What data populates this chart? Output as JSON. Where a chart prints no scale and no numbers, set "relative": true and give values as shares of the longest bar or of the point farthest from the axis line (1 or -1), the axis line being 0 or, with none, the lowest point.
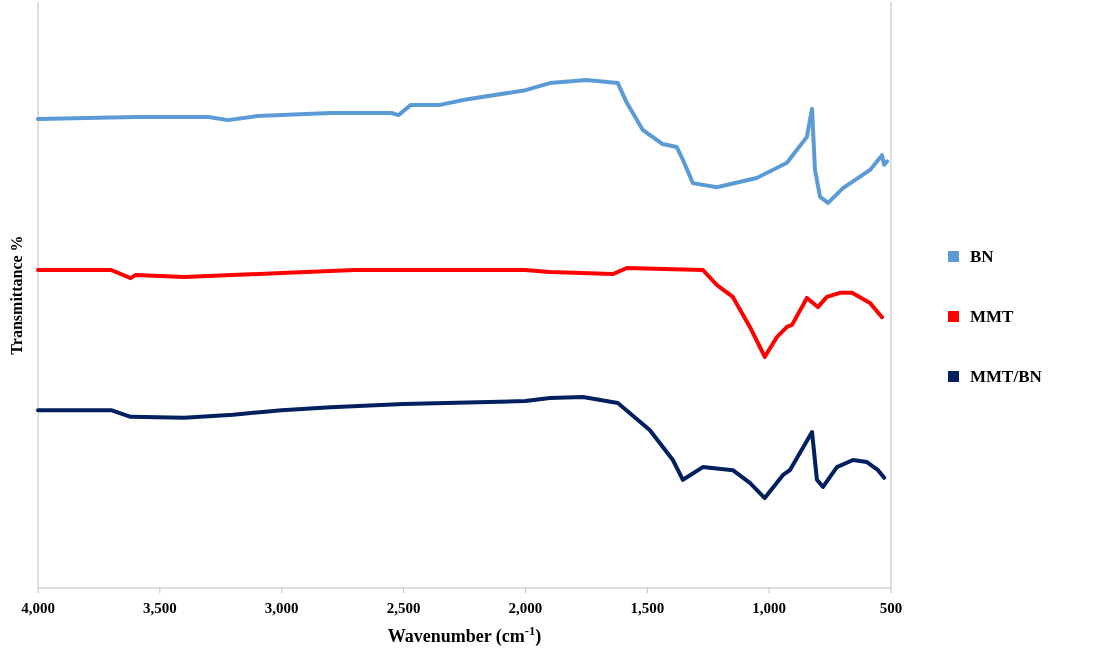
{
  "chart_data": {
    "type": "line",
    "xlabel": "Wavenumber (cm$^{-1}$)",
    "ylabel": "Transmittance %",
    "relative": true,
    "xlim": [
      4000,
      500
    ],
    "xticks": [
      {
        "value": 4000,
        "label": "4,000"
      },
      {
        "value": 3500,
        "label": "3,500"
      },
      {
        "value": 3000,
        "label": "3,000"
      },
      {
        "value": 2500,
        "label": "2,500"
      },
      {
        "value": 2000,
        "label": "2,000"
      },
      {
        "value": 1500,
        "label": "1,500"
      },
      {
        "value": 1000,
        "label": "1,000"
      },
      {
        "value": 500,
        "label": "500"
      }
    ],
    "grid": false,
    "legend": "right",
    "line_style": "solid",
    "series": [
      {
        "name": "BN",
        "color": "#5b9bd5",
        "x": [
          4000,
          3600,
          3300,
          3220,
          3100,
          2800,
          2550,
          2520,
          2470,
          2350,
          2250,
          2000,
          1900,
          1750,
          1621,
          1584,
          1519,
          1437,
          1379,
          1354,
          1313,
          1215,
          1051,
          927,
          845,
          824,
          812,
          791,
          758,
          697,
          586,
          537,
          528,
          516
        ],
        "values": [
          0.923,
          0.927,
          0.927,
          0.921,
          0.929,
          0.935,
          0.935,
          0.931,
          0.951,
          0.951,
          0.961,
          0.98,
          0.994,
          1,
          0.994,
          0.955,
          0.902,
          0.874,
          0.868,
          0.843,
          0.797,
          0.789,
          0.807,
          0.837,
          0.888,
          0.943,
          0.823,
          0.77,
          0.758,
          0.787,
          0.823,
          0.852,
          0.833,
          0.84
        ]
      },
      {
        "name": "MMT",
        "color": "#ff0000",
        "x": [
          4000,
          3700,
          3620,
          3600,
          3400,
          3000,
          2700,
          2000,
          1900,
          1641,
          1584,
          1272,
          1214,
          1149,
          1079,
          1018,
          968,
          927,
          906,
          845,
          800,
          763,
          710,
          660,
          586,
          537
        ],
        "values": [
          0.626,
          0.626,
          0.61,
          0.616,
          0.612,
          0.62,
          0.626,
          0.626,
          0.622,
          0.618,
          0.63,
          0.626,
          0.596,
          0.573,
          0.514,
          0.455,
          0.494,
          0.514,
          0.518,
          0.571,
          0.553,
          0.573,
          0.581,
          0.581,
          0.561,
          0.533
        ]
      },
      {
        "name": "MMT/BN",
        "color": "#002060",
        "x": [
          4000,
          3700,
          3620,
          3400,
          3200,
          3000,
          2800,
          2500,
          2000,
          1900,
          1764,
          1621,
          1490,
          1395,
          1354,
          1272,
          1149,
          1079,
          1018,
          944,
          915,
          824,
          804,
          779,
          722,
          656,
          599,
          553,
          528
        ],
        "values": [
          0.35,
          0.35,
          0.337,
          0.335,
          0.341,
          0.35,
          0.356,
          0.362,
          0.368,
          0.374,
          0.376,
          0.364,
          0.311,
          0.252,
          0.213,
          0.238,
          0.232,
          0.207,
          0.177,
          0.222,
          0.232,
          0.307,
          0.213,
          0.199,
          0.238,
          0.252,
          0.248,
          0.232,
          0.217
        ]
      }
    ]
  }
}
